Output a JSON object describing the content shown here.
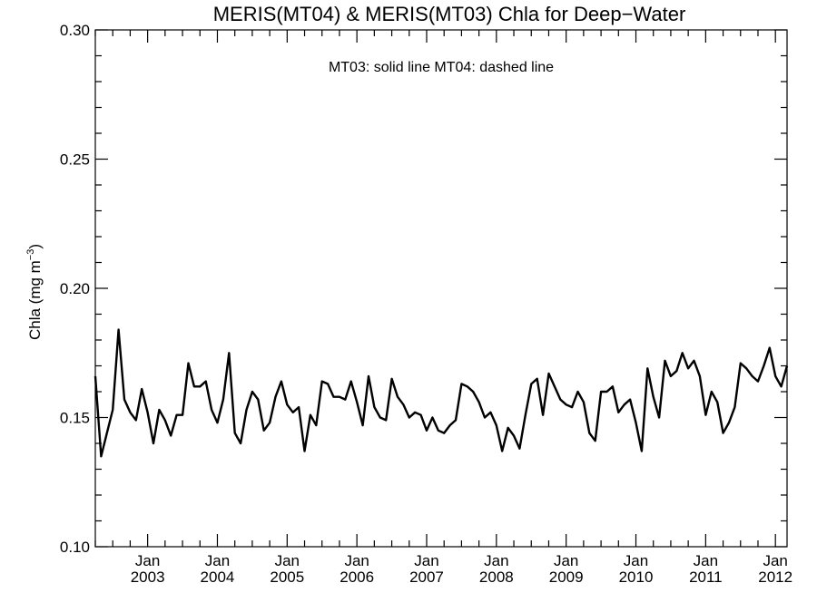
{
  "chart_data": {
    "type": "line",
    "title": "MERIS(MT04) & MERIS(MT03)  Chla for Deep−Water",
    "annotation": "MT03: solid line   MT04: dashed line",
    "ylabel_main": "Chla (mg m",
    "ylabel_sup": "−3",
    "ylabel_close": ")",
    "ylim": [
      0.1,
      0.3
    ],
    "xlim": [
      "2002-04",
      "2012-03"
    ],
    "y_ticks": [
      "0.10",
      "0.15",
      "0.20",
      "0.25",
      "0.30"
    ],
    "x_ticks": [
      {
        "month": "Jan",
        "year": "2003",
        "x": "2003-01"
      },
      {
        "month": "Jan",
        "year": "2004",
        "x": "2004-01"
      },
      {
        "month": "Jan",
        "year": "2005",
        "x": "2005-01"
      },
      {
        "month": "Jan",
        "year": "2006",
        "x": "2006-01"
      },
      {
        "month": "Jan",
        "year": "2007",
        "x": "2007-01"
      },
      {
        "month": "Jan",
        "year": "2008",
        "x": "2008-01"
      },
      {
        "month": "Jan",
        "year": "2009",
        "x": "2009-01"
      },
      {
        "month": "Jan",
        "year": "2010",
        "x": "2010-01"
      },
      {
        "month": "Jan",
        "year": "2011",
        "x": "2011-01"
      },
      {
        "month": "Jan",
        "year": "2012",
        "x": "2012-01"
      }
    ],
    "grid": false,
    "series": [
      {
        "style": "solid",
        "x": [
          "2002-04",
          "2002-05",
          "2002-06",
          "2002-07",
          "2002-08",
          "2002-09",
          "2002-10",
          "2002-11",
          "2002-12",
          "2003-01",
          "2003-02",
          "2003-03",
          "2003-04",
          "2003-05",
          "2003-06",
          "2003-07",
          "2003-08",
          "2003-09",
          "2003-10",
          "2003-11",
          "2003-12",
          "2004-01",
          "2004-02",
          "2004-03",
          "2004-04",
          "2004-05",
          "2004-06",
          "2004-07",
          "2004-08",
          "2004-09",
          "2004-10",
          "2004-11",
          "2004-12",
          "2005-01",
          "2005-02",
          "2005-03",
          "2005-04",
          "2005-05",
          "2005-06",
          "2005-07",
          "2005-08",
          "2005-09",
          "2005-10",
          "2005-11",
          "2005-12",
          "2006-01",
          "2006-02",
          "2006-03",
          "2006-04",
          "2006-05",
          "2006-06",
          "2006-07",
          "2006-08",
          "2006-09",
          "2006-10",
          "2006-11",
          "2006-12",
          "2007-01",
          "2007-02",
          "2007-03",
          "2007-04",
          "2007-05",
          "2007-06",
          "2007-07",
          "2007-08",
          "2007-09",
          "2007-10",
          "2007-11",
          "2007-12",
          "2008-01",
          "2008-02",
          "2008-03",
          "2008-04",
          "2008-05",
          "2008-06",
          "2008-07",
          "2008-08",
          "2008-09",
          "2008-10",
          "2008-11",
          "2008-12",
          "2009-01",
          "2009-02",
          "2009-03",
          "2009-04",
          "2009-05",
          "2009-06",
          "2009-07",
          "2009-08",
          "2009-09",
          "2009-10",
          "2009-11",
          "2009-12",
          "2010-01",
          "2010-02",
          "2010-03",
          "2010-04",
          "2010-05",
          "2010-06",
          "2010-07",
          "2010-08",
          "2010-09",
          "2010-10",
          "2010-11",
          "2010-12",
          "2011-01",
          "2011-02",
          "2011-03",
          "2011-04",
          "2011-05",
          "2011-06",
          "2011-07",
          "2011-08",
          "2011-09",
          "2011-10",
          "2011-11",
          "2011-12",
          "2012-01",
          "2012-02",
          "2012-03"
        ],
        "values": [
          0.166,
          0.135,
          0.144,
          0.153,
          0.184,
          0.157,
          0.152,
          0.149,
          0.161,
          0.152,
          0.14,
          0.153,
          0.149,
          0.143,
          0.151,
          0.151,
          0.171,
          0.162,
          0.162,
          0.164,
          0.153,
          0.148,
          0.157,
          0.175,
          0.144,
          0.14,
          0.153,
          0.16,
          0.157,
          0.145,
          0.148,
          0.158,
          0.164,
          0.155,
          0.152,
          0.154,
          0.137,
          0.151,
          0.147,
          0.164,
          0.163,
          0.158,
          0.158,
          0.157,
          0.164,
          0.156,
          0.147,
          0.166,
          0.154,
          0.15,
          0.149,
          0.165,
          0.158,
          0.155,
          0.15,
          0.152,
          0.151,
          0.145,
          0.15,
          0.145,
          0.144,
          0.147,
          0.149,
          0.163,
          0.162,
          0.16,
          0.156,
          0.15,
          0.152,
          0.147,
          0.137,
          0.146,
          0.143,
          0.138,
          0.151,
          0.163,
          0.165,
          0.151,
          0.167,
          0.162,
          0.157,
          0.155,
          0.154,
          0.16,
          0.156,
          0.144,
          0.141,
          0.16,
          0.16,
          0.162,
          0.152,
          0.155,
          0.157,
          0.148,
          0.137,
          0.169,
          0.158,
          0.15,
          0.172,
          0.166,
          0.168,
          0.175,
          0.169,
          0.172,
          0.166,
          0.151,
          0.16,
          0.156,
          0.144,
          0.148,
          0.154,
          0.171,
          0.169,
          0.166,
          0.164,
          0.17,
          0.177,
          0.166,
          0.162,
          0.17
        ]
      }
    ]
  }
}
